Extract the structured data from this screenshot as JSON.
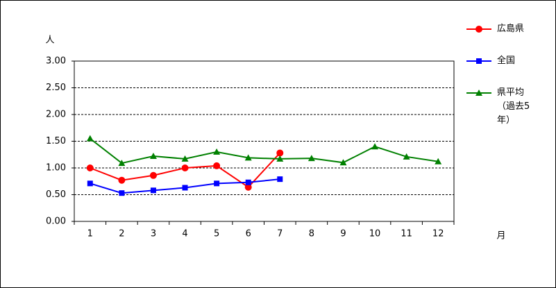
{
  "chart_data": {
    "type": "line",
    "y_label": "人",
    "x_label": "月",
    "categories": [
      "1",
      "2",
      "3",
      "4",
      "5",
      "6",
      "7",
      "8",
      "9",
      "10",
      "11",
      "12"
    ],
    "series": [
      {
        "name": "広島県",
        "color": "#ff0000",
        "marker": "circle",
        "values": [
          1.0,
          0.77,
          0.86,
          1.0,
          1.04,
          0.64,
          1.28,
          null,
          null,
          null,
          null,
          null
        ]
      },
      {
        "name": "全国",
        "color": "#0000ff",
        "marker": "square",
        "values": [
          0.71,
          0.53,
          0.58,
          0.63,
          0.71,
          0.73,
          0.79,
          null,
          null,
          null,
          null,
          null
        ]
      },
      {
        "name": "県平均（過去5年）",
        "color": "#008000",
        "marker": "triangle",
        "values": [
          1.55,
          1.09,
          1.22,
          1.17,
          1.3,
          1.19,
          1.17,
          1.18,
          1.1,
          1.4,
          1.21,
          1.12
        ]
      }
    ],
    "ylim": [
      0,
      3
    ],
    "yticks": [
      {
        "value": 0,
        "label": "0.00"
      },
      {
        "value": 0.5,
        "label": "0.50"
      },
      {
        "value": 1,
        "label": "1.00"
      },
      {
        "value": 1.5,
        "label": "1.50"
      },
      {
        "value": 2,
        "label": "2.00"
      },
      {
        "value": 2.5,
        "label": "2.50"
      },
      {
        "value": 3,
        "label": "3.00"
      }
    ],
    "grid": true
  }
}
